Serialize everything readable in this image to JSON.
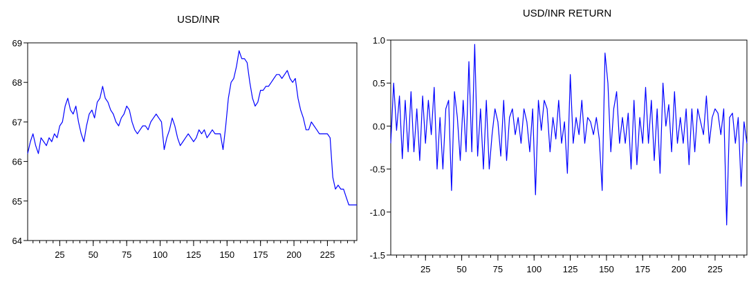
{
  "chart_data": [
    {
      "type": "line",
      "title": "USD/INR",
      "xlabel": "",
      "ylabel": "",
      "xlim": [
        1,
        247
      ],
      "ylim": [
        64,
        69
      ],
      "xticks": [
        25,
        50,
        75,
        100,
        125,
        150,
        175,
        200,
        225
      ],
      "yticks": [
        64,
        65,
        66,
        67,
        68,
        69
      ],
      "tick_labels_x": [
        "25",
        "50",
        "75",
        "100",
        "125",
        "150",
        "175",
        "200",
        "225"
      ],
      "tick_labels_y": [
        "64",
        "65",
        "66",
        "67",
        "68",
        "69"
      ],
      "grid": false,
      "line_color": "#0000ff",
      "series": [
        {
          "x": [
            1,
            3,
            5,
            7,
            9,
            11,
            13,
            15,
            17,
            19,
            21,
            23,
            25,
            27,
            29,
            31,
            33,
            35,
            37,
            39,
            41,
            43,
            45,
            47,
            49,
            51,
            53,
            55,
            57,
            59,
            61,
            63,
            65,
            67,
            69,
            71,
            73,
            75,
            77,
            79,
            81,
            83,
            85,
            87,
            89,
            91,
            93,
            95,
            97,
            99,
            101,
            103,
            105,
            107,
            109,
            111,
            113,
            115,
            117,
            119,
            121,
            123,
            125,
            127,
            129,
            131,
            133,
            135,
            137,
            139,
            141,
            143,
            145,
            147,
            149,
            151,
            153,
            155,
            157,
            159,
            161,
            163,
            165,
            167,
            169,
            171,
            173,
            175,
            177,
            179,
            181,
            183,
            185,
            187,
            189,
            191,
            193,
            195,
            197,
            199,
            201,
            203,
            205,
            207,
            209,
            211,
            213,
            215,
            217,
            219,
            221,
            223,
            225,
            227,
            229,
            231,
            233,
            235,
            237,
            239,
            241,
            243,
            245,
            247
          ],
          "values": [
            66.2,
            66.5,
            66.7,
            66.4,
            66.2,
            66.6,
            66.5,
            66.4,
            66.6,
            66.5,
            66.7,
            66.6,
            66.9,
            67.0,
            67.4,
            67.6,
            67.3,
            67.2,
            67.4,
            67.0,
            66.7,
            66.5,
            66.9,
            67.2,
            67.3,
            67.1,
            67.5,
            67.6,
            67.9,
            67.6,
            67.5,
            67.3,
            67.2,
            67.0,
            66.9,
            67.1,
            67.2,
            67.4,
            67.3,
            67.0,
            66.8,
            66.7,
            66.8,
            66.9,
            66.9,
            66.8,
            67.0,
            67.1,
            67.2,
            67.1,
            67.0,
            66.3,
            66.6,
            66.8,
            67.1,
            66.9,
            66.6,
            66.4,
            66.5,
            66.6,
            66.7,
            66.6,
            66.5,
            66.6,
            66.8,
            66.7,
            66.8,
            66.6,
            66.7,
            66.8,
            66.7,
            66.7,
            66.7,
            66.3,
            66.9,
            67.6,
            68.0,
            68.1,
            68.4,
            68.8,
            68.6,
            68.6,
            68.5,
            68.0,
            67.6,
            67.4,
            67.5,
            67.8,
            67.8,
            67.9,
            67.9,
            68.0,
            68.1,
            68.2,
            68.2,
            68.1,
            68.2,
            68.3,
            68.1,
            68.0,
            68.1,
            67.6,
            67.3,
            67.1,
            66.8,
            66.8,
            67.0,
            66.9,
            66.8,
            66.7,
            66.7,
            66.7,
            66.7,
            66.6,
            65.6,
            65.3,
            65.4,
            65.3,
            65.3,
            65.1,
            64.9,
            64.9,
            64.9,
            64.9
          ]
        }
      ]
    },
    {
      "type": "line",
      "title": "USD/INR RETURN",
      "xlabel": "",
      "ylabel": "",
      "xlim": [
        1,
        247
      ],
      "ylim": [
        -1.5,
        1.0
      ],
      "xticks": [
        25,
        50,
        75,
        100,
        125,
        150,
        175,
        200,
        225
      ],
      "yticks": [
        -1.5,
        -1.0,
        -0.5,
        0.0,
        0.5,
        1.0
      ],
      "tick_labels_x": [
        "25",
        "50",
        "75",
        "100",
        "125",
        "150",
        "175",
        "200",
        "225"
      ],
      "tick_labels_y": [
        "-1.5",
        "-1.0",
        "-0.5",
        "0.0",
        "0.5",
        "1.0"
      ],
      "grid": false,
      "line_color": "#0000ff",
      "series": [
        {
          "x": [
            1,
            3,
            5,
            7,
            9,
            11,
            13,
            15,
            17,
            19,
            21,
            23,
            25,
            27,
            29,
            31,
            33,
            35,
            37,
            39,
            41,
            43,
            45,
            47,
            49,
            51,
            53,
            55,
            57,
            59,
            61,
            63,
            65,
            67,
            69,
            71,
            73,
            75,
            77,
            79,
            81,
            83,
            85,
            87,
            89,
            91,
            93,
            95,
            97,
            99,
            101,
            103,
            105,
            107,
            109,
            111,
            113,
            115,
            117,
            119,
            121,
            123,
            125,
            127,
            129,
            131,
            133,
            135,
            137,
            139,
            141,
            143,
            145,
            147,
            149,
            151,
            153,
            155,
            157,
            159,
            161,
            163,
            165,
            167,
            169,
            171,
            173,
            175,
            177,
            179,
            181,
            183,
            185,
            187,
            189,
            191,
            193,
            195,
            197,
            199,
            201,
            203,
            205,
            207,
            209,
            211,
            213,
            215,
            217,
            219,
            221,
            223,
            225,
            227,
            229,
            231,
            233,
            235,
            237,
            239,
            241,
            243,
            245,
            247
          ],
          "values": [
            -0.2,
            0.5,
            -0.05,
            0.35,
            -0.38,
            0.3,
            -0.3,
            0.4,
            -0.3,
            0.2,
            -0.4,
            0.35,
            -0.2,
            0.3,
            -0.1,
            0.45,
            -0.5,
            0.1,
            -0.5,
            0.2,
            0.3,
            -0.75,
            0.4,
            0.1,
            -0.4,
            0.3,
            -0.3,
            0.75,
            -0.3,
            0.95,
            -0.35,
            0.2,
            -0.5,
            0.3,
            -0.5,
            -0.1,
            0.2,
            0.05,
            -0.35,
            0.3,
            -0.4,
            0.1,
            0.2,
            -0.1,
            0.1,
            -0.2,
            0.2,
            0.05,
            -0.3,
            0.2,
            -0.8,
            0.3,
            -0.05,
            0.3,
            0.2,
            -0.3,
            0.1,
            -0.15,
            0.3,
            -0.2,
            0.05,
            -0.55,
            0.6,
            -0.2,
            0.1,
            -0.1,
            0.3,
            -0.2,
            0.1,
            0.05,
            -0.1,
            0.1,
            -0.15,
            -0.75,
            0.85,
            0.5,
            -0.3,
            0.2,
            0.4,
            -0.2,
            0.1,
            -0.2,
            0.15,
            -0.5,
            0.3,
            -0.45,
            0.1,
            -0.2,
            0.45,
            -0.2,
            0.3,
            -0.4,
            0.2,
            -0.55,
            0.5,
            0.0,
            0.25,
            -0.3,
            0.4,
            -0.2,
            0.1,
            -0.2,
            0.2,
            -0.45,
            0.2,
            -0.3,
            0.2,
            0.05,
            -0.1,
            0.35,
            -0.2,
            0.1,
            0.2,
            0.15,
            -0.1,
            0.2,
            -1.15,
            0.1,
            0.15,
            -0.2,
            0.1,
            -0.7,
            0.05,
            -0.2
          ]
        }
      ]
    }
  ]
}
